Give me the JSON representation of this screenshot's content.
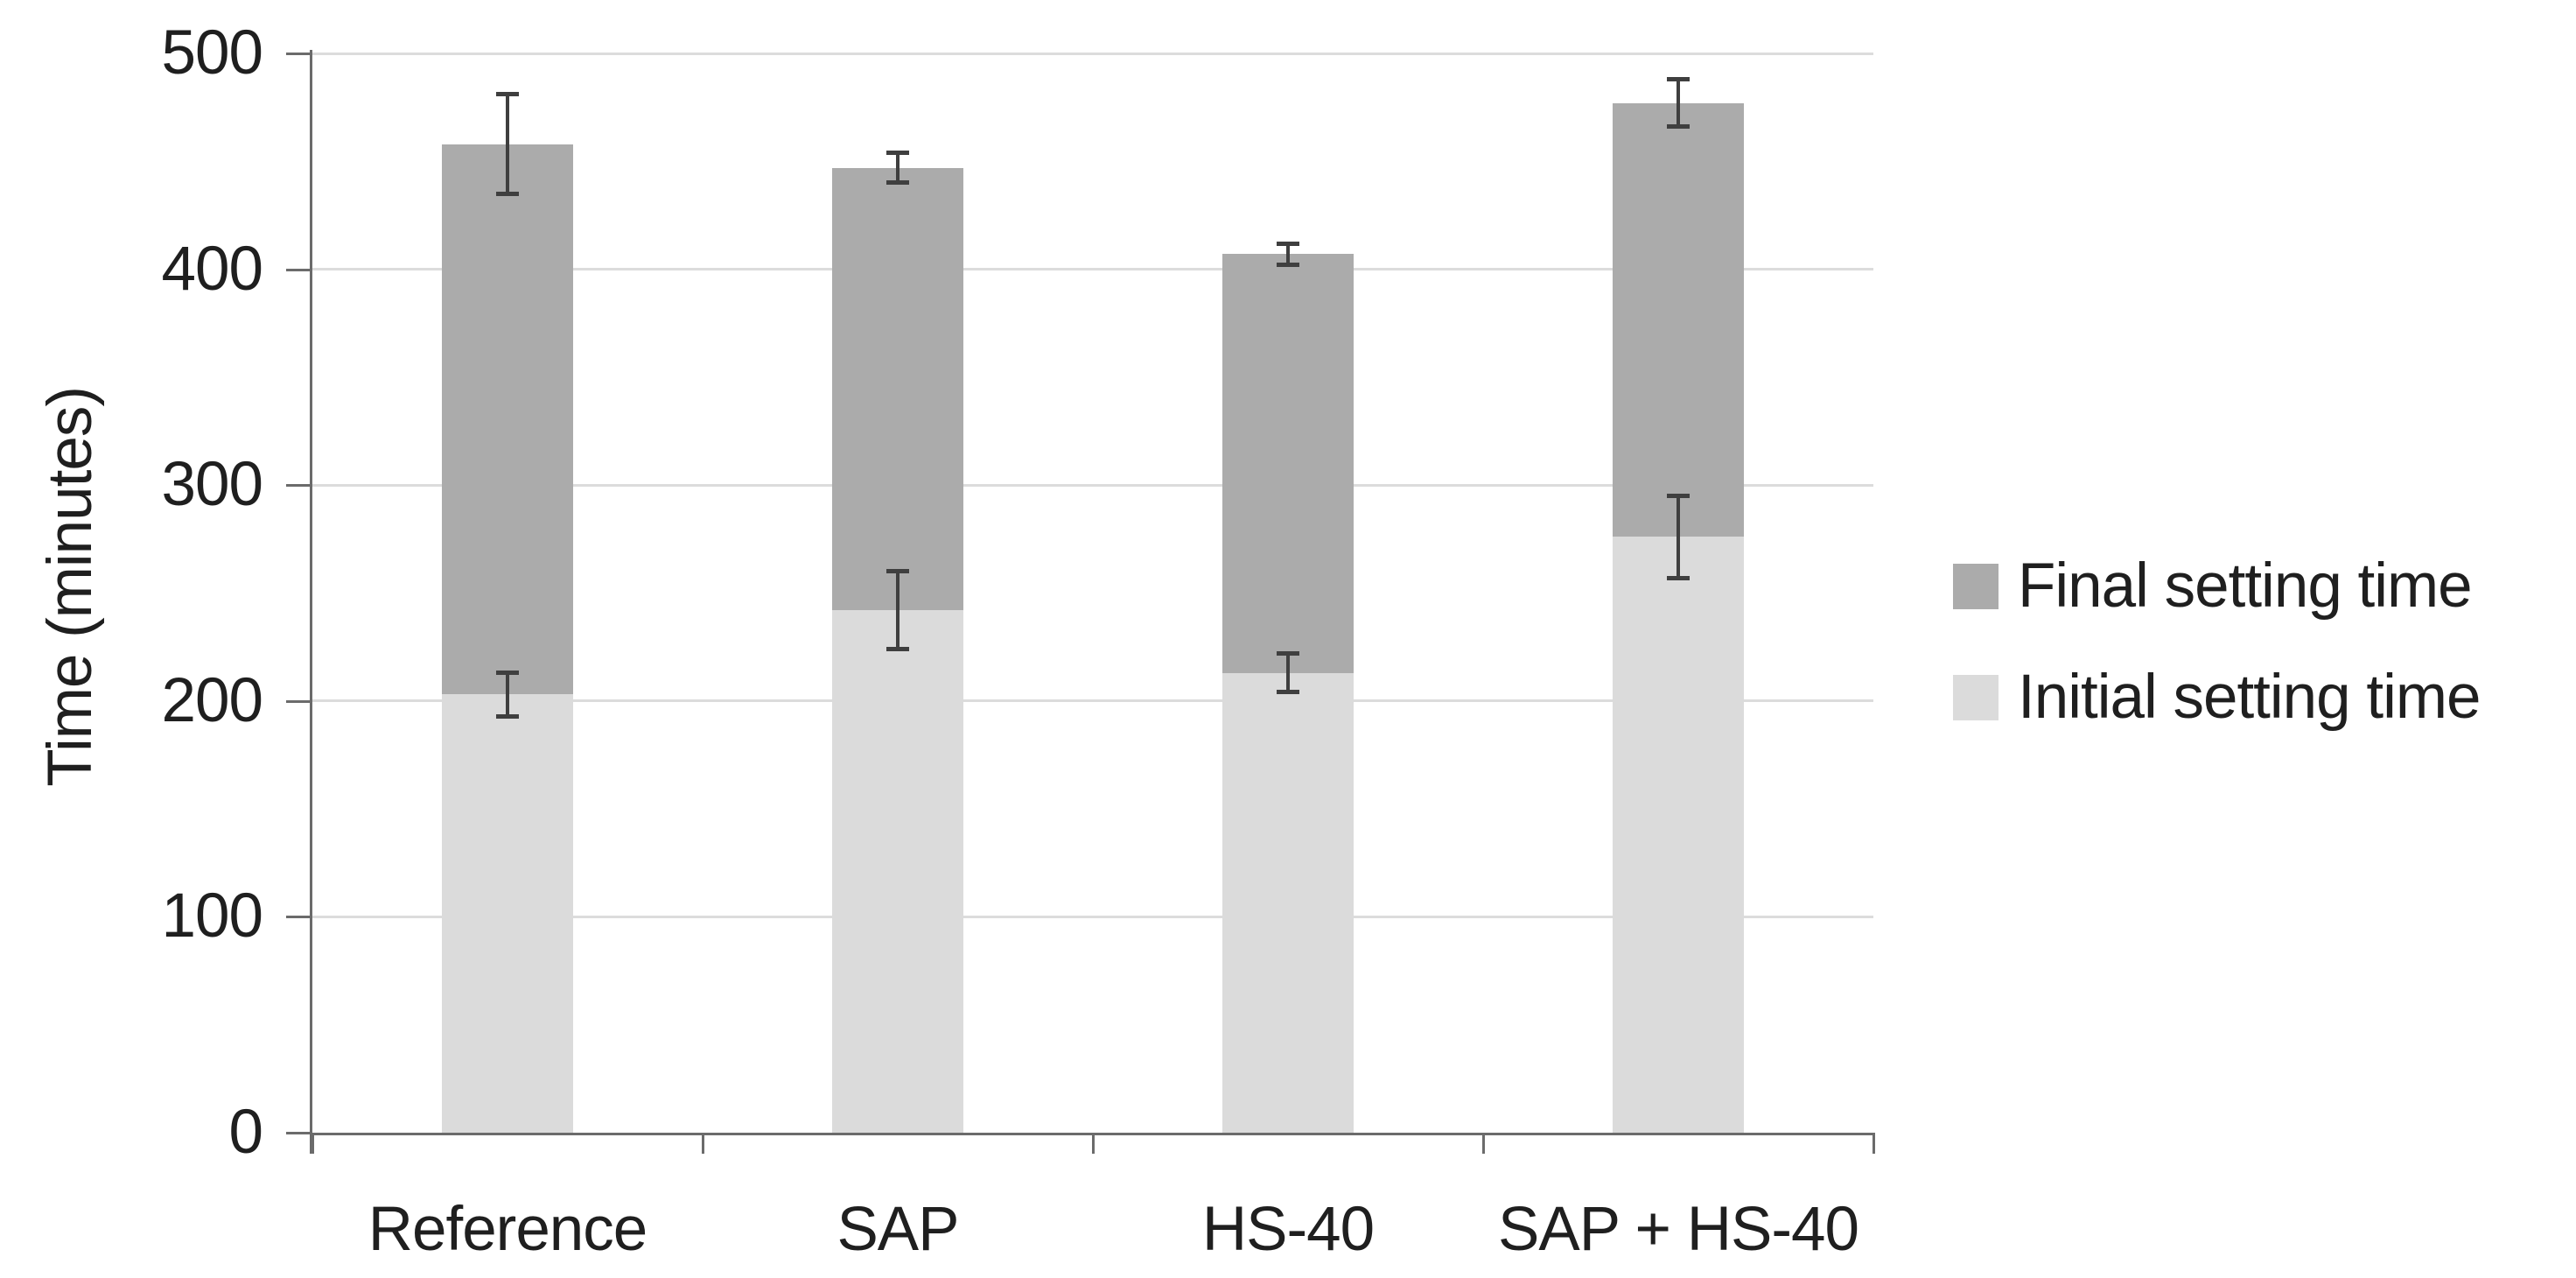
{
  "chart_data": {
    "type": "bar",
    "stacked": true,
    "title": "",
    "xlabel": "",
    "ylabel": "Time (minutes)",
    "ylim": [
      0,
      500
    ],
    "yticks": [
      0,
      100,
      200,
      300,
      400,
      500
    ],
    "grid": "horizontal",
    "gridline_color": "#dcdcdc",
    "axis_color": "#6b6b6b",
    "error_bar_color": "#3f3f3f",
    "legend_position": "right",
    "legend_order": [
      "Final setting time",
      "Initial setting time"
    ],
    "categories": [
      "Reference",
      "SAP",
      "HS-40",
      "SAP + HS-40"
    ],
    "series": [
      {
        "name": "Initial setting time",
        "color": "#dbdbdb",
        "values": [
          203,
          242,
          213,
          276
        ],
        "error_bars": [
          10,
          18,
          9,
          19
        ]
      },
      {
        "name": "Final setting time",
        "color": "#ababab",
        "segment_values": [
          255,
          205,
          194,
          201
        ],
        "stack_totals": [
          458,
          447,
          407,
          477
        ],
        "error_bars": [
          23,
          7,
          5,
          11
        ]
      }
    ]
  }
}
